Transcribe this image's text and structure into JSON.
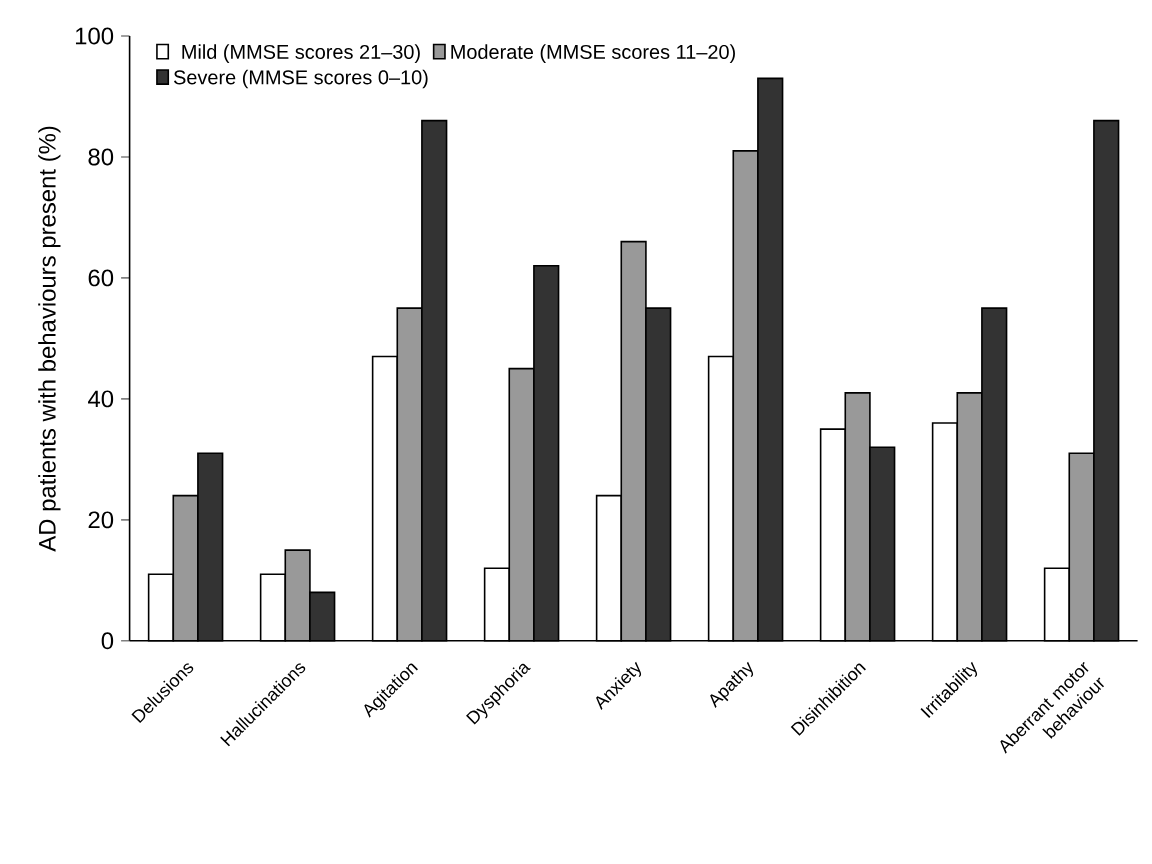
{
  "chart_data": {
    "type": "bar",
    "ylabel": "AD patients with behaviours present (%)",
    "categories": [
      "Delusions",
      "Hallucinations",
      "Agitation",
      "Dysphoria",
      "Anxiety",
      "Apathy",
      "Disinhibition",
      "Irritability",
      "Aberrant motor behaviour"
    ],
    "series": [
      {
        "name": "Mild (MMSE scores 21–30)",
        "color": "#ffffff",
        "values": [
          11,
          11,
          47,
          12,
          24,
          47,
          35,
          36,
          12
        ]
      },
      {
        "name": "Moderate (MMSE scores 11–20)",
        "color": "#999999",
        "values": [
          24,
          15,
          55,
          45,
          66,
          81,
          41,
          41,
          31
        ]
      },
      {
        "name": "Severe (MMSE scores 0–10)",
        "color": "#333333",
        "values": [
          31,
          8,
          86,
          62,
          55,
          93,
          32,
          55,
          86
        ]
      }
    ],
    "ylim": [
      0,
      100
    ],
    "yticks": [
      0,
      20,
      40,
      60,
      80,
      100
    ],
    "grid": false,
    "legend": "top left"
  }
}
